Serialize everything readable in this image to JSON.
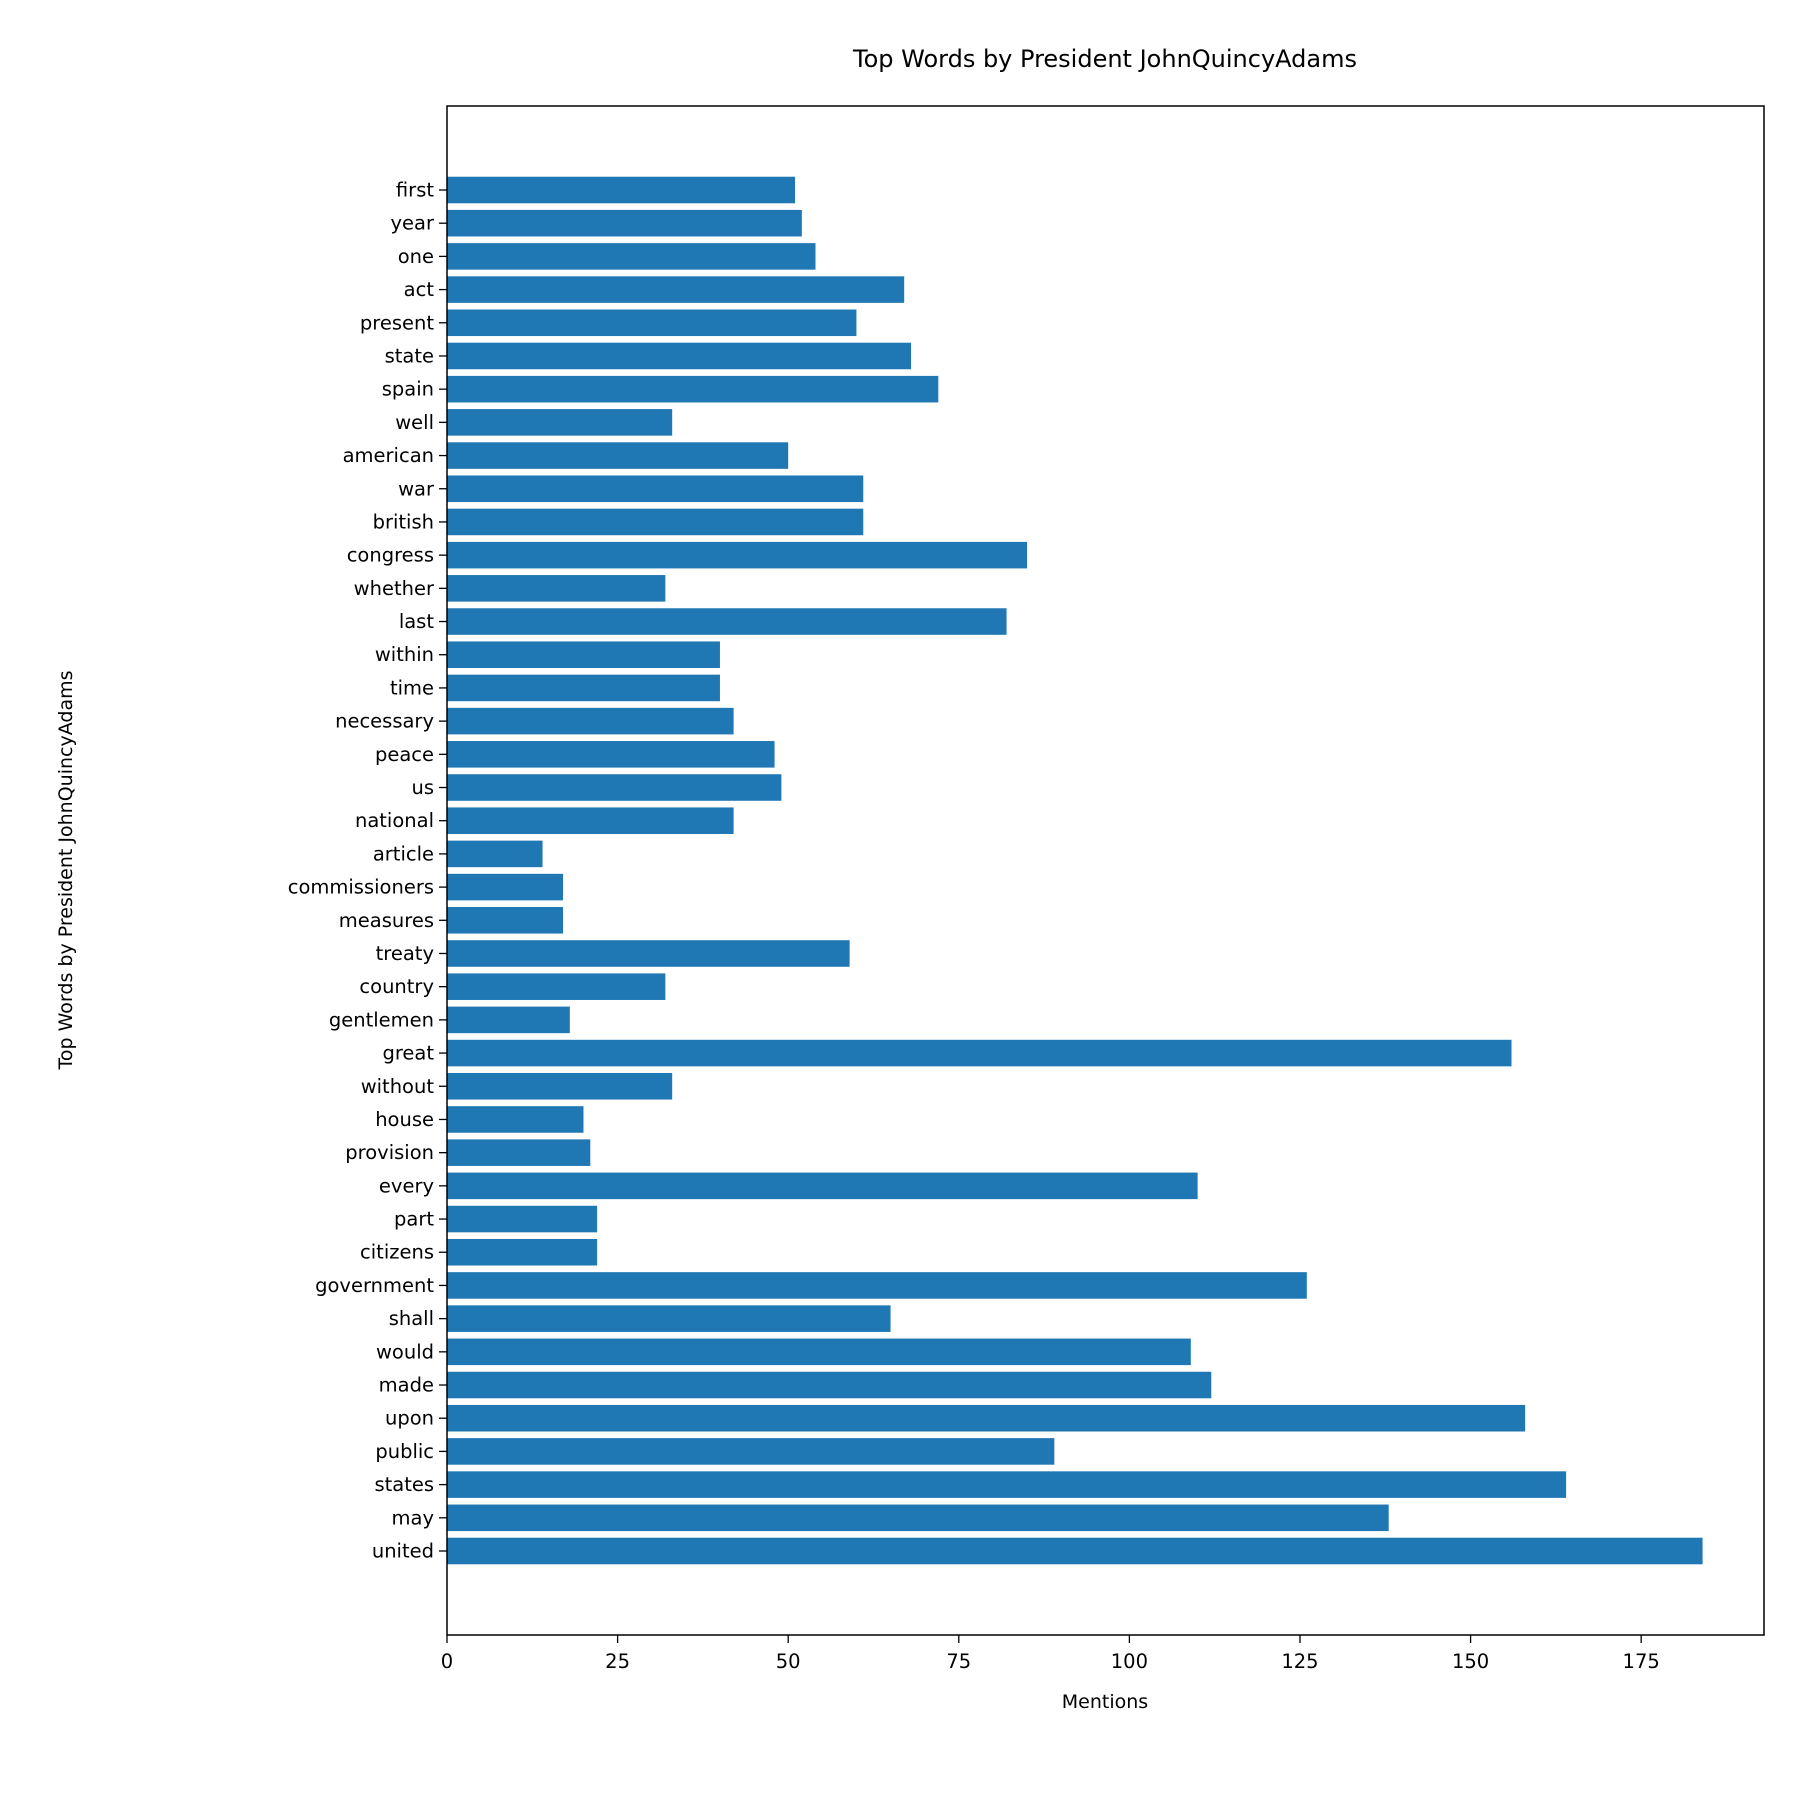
{
  "chart_data": {
    "type": "bar",
    "orientation": "horizontal",
    "title": "Top Words by President JohnQuincyAdams",
    "xlabel": "Mentions",
    "ylabel": "Top Words by President JohnQuincyAdams",
    "xlim": [
      0,
      193
    ],
    "xticks": [
      0,
      25,
      50,
      75,
      100,
      125,
      150,
      175
    ],
    "bar_color": "#1f77b4",
    "grid": false,
    "categories": [
      "united",
      "may",
      "states",
      "public",
      "upon",
      "made",
      "would",
      "shall",
      "government",
      "citizens",
      "part",
      "every",
      "provision",
      "house",
      "without",
      "great",
      "gentlemen",
      "country",
      "treaty",
      "measures",
      "commissioners",
      "article",
      "national",
      "us",
      "peace",
      "necessary",
      "time",
      "within",
      "last",
      "whether",
      "congress",
      "british",
      "war",
      "american",
      "well",
      "spain",
      "state",
      "present",
      "act",
      "one",
      "year",
      "first"
    ],
    "values": [
      184,
      138,
      164,
      89,
      158,
      112,
      109,
      65,
      126,
      22,
      22,
      110,
      21,
      20,
      33,
      156,
      18,
      32,
      59,
      17,
      17,
      14,
      42,
      49,
      48,
      42,
      40,
      40,
      82,
      32,
      85,
      61,
      61,
      50,
      33,
      72,
      68,
      60,
      67,
      54,
      52,
      51
    ]
  }
}
